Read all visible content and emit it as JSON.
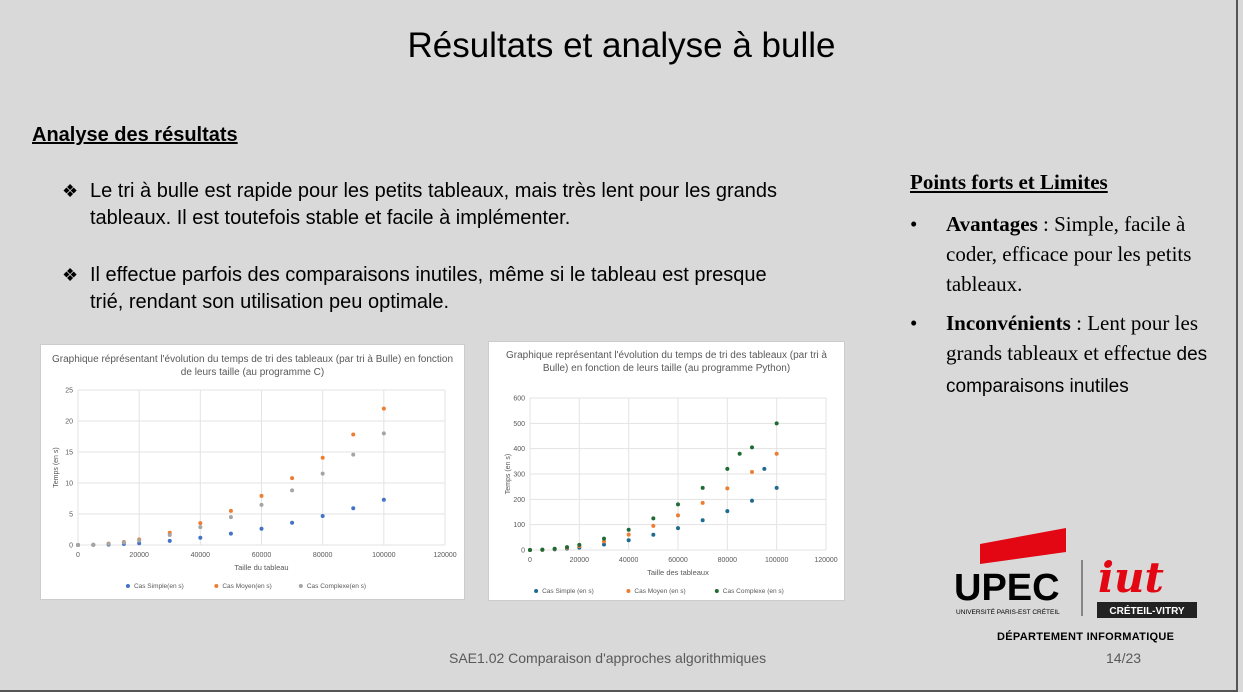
{
  "slide": {
    "title": "Résultats et analyse à bulle",
    "section_title": "Analyse des résultats",
    "bullets": [
      "Le tri à bulle est rapide pour les petits tableaux,  mais très lent pour les grands tableaux. Il est toutefois stable et facile à implémenter.",
      "Il effectue parfois des comparaisons inutiles, même si le tableau est presque trié, rendant son utilisation peu optimale."
    ],
    "right": {
      "title": "Points forts et Limites",
      "items": [
        {
          "label": "Avantages",
          "text": " : Simple, facile à coder, efficace pour les petits tableaux."
        },
        {
          "label": "Inconvénients",
          "text": " : Lent pour les grands tableaux et effectue ",
          "tail": "des comparaisons inutiles"
        }
      ]
    },
    "footer": "SAE1.02 Comparaison d'approches algorithmiques",
    "page": "14/23",
    "logo": {
      "upec": "UPEC",
      "upec_sub": "UNIVERSITÉ PARIS-EST CRÉTEIL",
      "iut": "iut",
      "iut_sub": "CRÉTEIL-VITRY",
      "department": "DÉPARTEMENT INFORMATIQUE",
      "red": "#e30613"
    }
  },
  "chart_data": [
    {
      "type": "scatter",
      "title": "Graphique réprésentant l'évolution du temps de tri des tableaux (par tri à Bulle) en fonction de leurs taille (au programme C)",
      "xlabel": "Taille du tableau",
      "ylabel": "Temps (en s)",
      "xlim": [
        0,
        120000
      ],
      "ylim": [
        0,
        25
      ],
      "xticks": [
        "0",
        "20000",
        "40000",
        "60000",
        "80000",
        "100000",
        "120000"
      ],
      "yticks": [
        "0",
        "5",
        "10",
        "15",
        "20",
        "25"
      ],
      "grid": true,
      "legend": "bottom",
      "series": [
        {
          "name": "Cas Simple(en s)",
          "color": "#4472c4",
          "x": [
            0,
            5000,
            10000,
            15000,
            20000,
            30000,
            40000,
            50000,
            60000,
            70000,
            80000,
            90000,
            100000
          ],
          "y": [
            0,
            0.02,
            0.07,
            0.16,
            0.29,
            0.66,
            1.17,
            1.83,
            2.63,
            3.58,
            4.68,
            5.93,
            7.3
          ]
        },
        {
          "name": "Cas Moyen(en s)",
          "color": "#ed7d31",
          "x": [
            0,
            5000,
            10000,
            15000,
            20000,
            30000,
            40000,
            50000,
            60000,
            70000,
            80000,
            90000,
            100000
          ],
          "y": [
            0,
            0.05,
            0.22,
            0.49,
            0.88,
            1.98,
            3.52,
            5.5,
            7.92,
            10.78,
            14.08,
            17.82,
            22.0
          ]
        },
        {
          "name": "Cas Complexe(en s)",
          "color": "#a5a5a5",
          "x": [
            0,
            5000,
            10000,
            15000,
            20000,
            30000,
            40000,
            50000,
            60000,
            70000,
            80000,
            90000,
            100000
          ],
          "y": [
            0,
            0.05,
            0.18,
            0.41,
            0.72,
            1.62,
            2.88,
            4.5,
            6.48,
            8.82,
            11.52,
            14.58,
            18.0
          ]
        }
      ]
    },
    {
      "type": "scatter",
      "title": "Graphique représentant l'évolution du temps de tri des tableaux (par tri à Bulle) en fonction de leurs taille (au programme Python)",
      "xlabel": "Taille des tableaux",
      "ylabel": "Temps (en s)",
      "xlim": [
        0,
        120000
      ],
      "ylim": [
        0,
        600
      ],
      "xticks": [
        "0",
        "20000",
        "40000",
        "60000",
        "80000",
        "100000",
        "120000"
      ],
      "yticks": [
        "0",
        "100",
        "200",
        "300",
        "400",
        "500",
        "600"
      ],
      "grid": true,
      "legend": "bottom",
      "series": [
        {
          "name": "Cas Simple (en s)",
          "color": "#1f6b8f",
          "x": [
            0,
            5000,
            10000,
            15000,
            20000,
            30000,
            40000,
            50000,
            60000,
            70000,
            80000,
            90000,
            95000,
            100000
          ],
          "y": [
            0,
            0.6,
            2.4,
            5.4,
            9.6,
            21.6,
            38.4,
            60,
            86.4,
            117.6,
            153.6,
            194.4,
            320,
            245
          ]
        },
        {
          "name": "Cas Moyen (en s)",
          "color": "#ed7d31",
          "x": [
            0,
            5000,
            10000,
            15000,
            20000,
            30000,
            40000,
            50000,
            60000,
            70000,
            80000,
            90000,
            100000
          ],
          "y": [
            0,
            0.95,
            3.8,
            8.6,
            15.2,
            34.2,
            60.8,
            95,
            136.8,
            186.2,
            243.2,
            307.8,
            380
          ]
        },
        {
          "name": "Cas Complexe (en s)",
          "color": "#1e6b35",
          "x": [
            0,
            5000,
            10000,
            15000,
            20000,
            30000,
            40000,
            50000,
            60000,
            70000,
            80000,
            85000,
            90000,
            100000
          ],
          "y": [
            0,
            1.25,
            5,
            11.25,
            20,
            45,
            80,
            125,
            180,
            245,
            320,
            380,
            405,
            500
          ]
        }
      ]
    }
  ]
}
